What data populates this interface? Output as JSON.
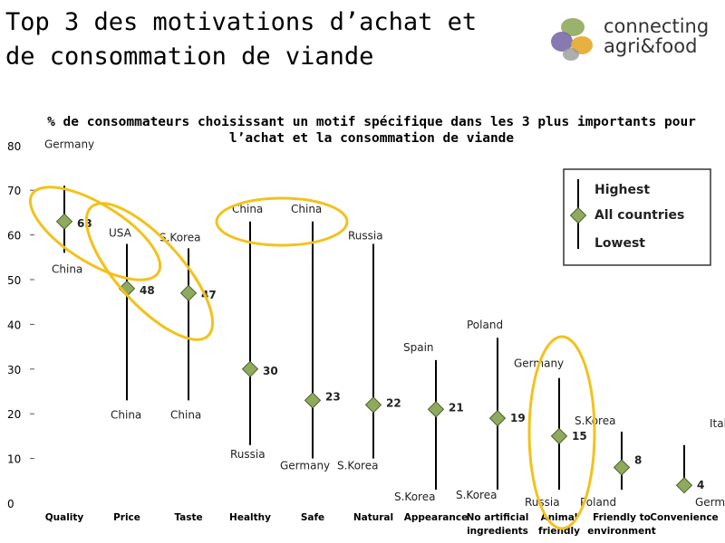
{
  "page": {
    "title": "Top 3 des motivations d’achat et de consommation de viande",
    "logo_text_line1": "connecting",
    "logo_text_line2": "agri&food"
  },
  "chart_data": {
    "type": "scatter",
    "subtitle": "% de consommateurs choisissant un motif spécifique dans les 3 plus importants pour l’achat et la consommation de viande",
    "ylim": [
      0,
      80
    ],
    "yticks": [
      0,
      10,
      20,
      30,
      40,
      50,
      60,
      70,
      80
    ],
    "categories": [
      "Quality",
      "Price",
      "Taste",
      "Healthy",
      "Safe",
      "Natural",
      "Appearance",
      "No artificial ingredients",
      "Animal friendly",
      "Friendly to environment",
      "Convenience"
    ],
    "all_countries": [
      63,
      48,
      47,
      30,
      23,
      22,
      21,
      19,
      15,
      8,
      4
    ],
    "highest": [
      71,
      58,
      57,
      63,
      63,
      58,
      32,
      37,
      28,
      16,
      13
    ],
    "lowest": [
      56,
      23,
      23,
      13,
      10,
      10,
      3,
      3,
      3,
      3,
      3
    ],
    "highest_labels": [
      "Germany",
      "USA",
      "S.Korea",
      "China",
      "China",
      "Russia",
      "Spain",
      "Poland",
      "Germany",
      "S.Korea",
      "Italy"
    ],
    "lowest_labels": [
      "China",
      "China",
      "China",
      "Russia",
      "Germany",
      "S.Korea",
      "S.Korea",
      "S.Korea",
      "Russia",
      "Poland",
      "Germany"
    ],
    "legend": {
      "highest": "Highest",
      "all_countries": "All countries",
      "lowest": "Lowest",
      "position": "top-right"
    },
    "colors": {
      "marker_fill": "#8faa5c",
      "marker_stroke": "#4b6030",
      "highlight": "#f2c21b"
    }
  }
}
